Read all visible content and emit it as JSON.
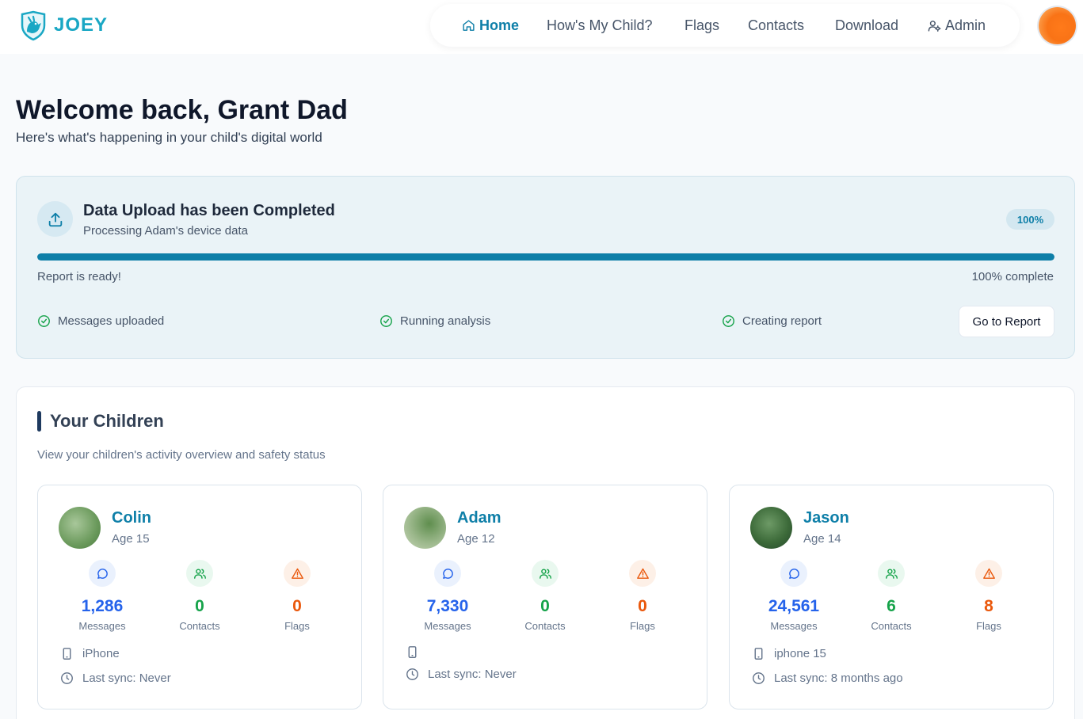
{
  "app": {
    "logo_text": "JOEY"
  },
  "nav": {
    "items": [
      {
        "label": "Home",
        "icon": "home-icon",
        "active": true
      },
      {
        "label": "How's My Child?"
      },
      {
        "label": "Flags"
      },
      {
        "label": "Contacts"
      },
      {
        "label": "Download"
      },
      {
        "label": "Admin",
        "icon": "user-cog-icon"
      }
    ]
  },
  "welcome": {
    "title": "Welcome back, Grant Dad",
    "subtitle": "Here's what's happening in your child's digital world"
  },
  "upload": {
    "title": "Data Upload has been Completed",
    "subtitle": "Processing Adam's device data",
    "badge": "100%",
    "progress": 1.0,
    "status_left": "Report is ready!",
    "status_right": "100% complete",
    "steps": [
      "Messages uploaded",
      "Running analysis",
      "Creating report"
    ],
    "button_label": "Go to Report"
  },
  "children_section": {
    "title": "Your Children",
    "subtitle": "View your children's activity overview and safety status",
    "labels": {
      "messages": "Messages",
      "contacts": "Contacts",
      "flags": "Flags"
    },
    "children": [
      {
        "name": "Colin",
        "age": "Age 15",
        "messages": "1,286",
        "contacts": "0",
        "flags": "0",
        "device": "iPhone",
        "sync": "Last sync: Never"
      },
      {
        "name": "Adam",
        "age": "Age 12",
        "messages": "7,330",
        "contacts": "0",
        "flags": "0",
        "device": "",
        "sync": "Last sync: Never"
      },
      {
        "name": "Jason",
        "age": "Age 14",
        "messages": "24,561",
        "contacts": "6",
        "flags": "8",
        "device": "iphone 15",
        "sync": "Last sync: 8 months ago"
      }
    ]
  },
  "colors": {
    "accent": "#0e7fa8",
    "messages": "#2563eb",
    "contacts": "#16a34a",
    "flags": "#ea580c"
  }
}
